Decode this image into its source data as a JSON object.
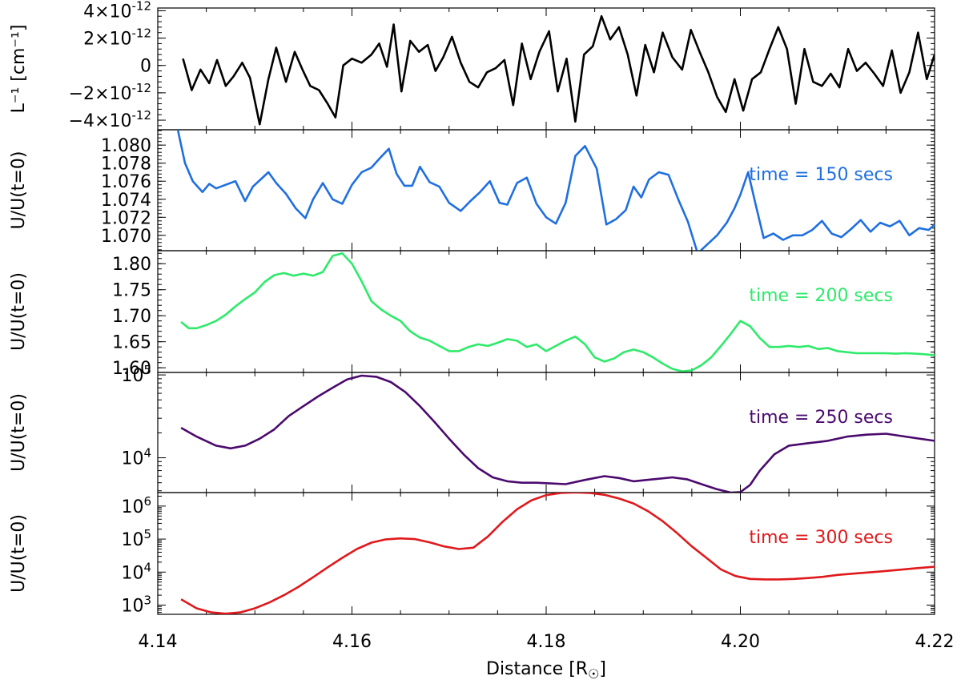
{
  "chart_data": {
    "type": "line",
    "x_axis": {
      "label": "Distance [R",
      "label_symbol": "☉",
      "label_close": "]",
      "range": [
        4.14,
        4.22
      ],
      "ticks": [
        4.14,
        4.16,
        4.18,
        4.2,
        4.22
      ],
      "tick_labels": [
        "4.14",
        "4.16",
        "4.18",
        "4.20",
        "4.22"
      ]
    },
    "panels": [
      {
        "id": "inverse-length",
        "ylabel": "L⁻¹ [cm⁻¹]",
        "scale": "linear",
        "ylim": [
          -4.7e-12,
          4.2e-12
        ],
        "yticks": [
          {
            "value": 4e-12,
            "mant": "4",
            "exp": "-12"
          },
          {
            "value": 2e-12,
            "mant": "2",
            "exp": "-12"
          },
          {
            "value": 0,
            "mant": "0",
            "exp": ""
          },
          {
            "value": -2e-12,
            "mant": "−2",
            "exp": "-12"
          },
          {
            "value": -4e-12,
            "mant": "−4",
            "exp": "-12"
          }
        ],
        "color": "#000000",
        "annotation": "",
        "series": [
          {
            "name": "L^-1",
            "x": [
              4.1426,
              4.1435,
              4.1444,
              4.1453,
              4.1461,
              4.147,
              4.1478,
              4.1487,
              4.1495,
              4.1505,
              4.1514,
              4.1522,
              4.1532,
              4.1541,
              4.1549,
              4.1557,
              4.1566,
              4.1575,
              4.1583,
              4.1591,
              4.16,
              4.161,
              4.162,
              4.1628,
              4.1636,
              4.1643,
              4.1651,
              4.166,
              4.1669,
              4.1678,
              4.1686,
              4.1694,
              4.1703,
              4.1712,
              4.1721,
              4.173,
              4.1739,
              4.1748,
              4.1757,
              4.1766,
              4.1775,
              4.1784,
              4.1793,
              4.1803,
              4.1812,
              4.1821,
              4.183,
              4.1839,
              4.1848,
              4.1857,
              4.1866,
              4.1875,
              4.1884,
              4.1893,
              4.1902,
              4.1911,
              4.192,
              4.193,
              4.194,
              4.1949,
              4.1958,
              4.1967,
              4.1976,
              4.1985,
              4.1994,
              4.2003,
              4.2012,
              4.2021,
              4.203,
              4.2039,
              4.2048,
              4.2057,
              4.2066,
              4.2075,
              4.2084,
              4.2093,
              4.2102,
              4.2111,
              4.212,
              4.2129,
              4.2138,
              4.2147,
              4.2156,
              4.2165,
              4.2174,
              4.2183,
              4.2192,
              4.22
            ],
            "y": [
              5e-13,
              -1.8e-12,
              -3e-13,
              -1.3e-12,
              4e-13,
              -1.5e-12,
              -8e-13,
              2e-13,
              -9e-13,
              -4.3e-12,
              -1e-12,
              1.3e-12,
              -1.2e-12,
              1e-12,
              -3e-13,
              -1.5e-12,
              -1.8e-12,
              -2.8e-12,
              -3.8e-12,
              0.0,
              5e-13,
              2e-13,
              8e-13,
              1.6e-12,
              -1e-13,
              3e-12,
              -1.9e-12,
              1.8e-12,
              1e-12,
              1.5e-12,
              -4e-13,
              6e-13,
              2.1e-12,
              2e-13,
              -1.2e-12,
              -1.6e-12,
              -5e-13,
              -2e-13,
              4e-13,
              -2.9e-12,
              1.6e-12,
              -1e-12,
              1e-12,
              2.5e-12,
              -1.9e-12,
              5e-13,
              -4.1e-12,
              8e-13,
              1.4e-12,
              3.6e-12,
              1.9e-12,
              2.8e-12,
              8e-13,
              -2.2e-12,
              1.5e-12,
              -5e-13,
              2.4e-12,
              6e-13,
              -3e-13,
              2.6e-12,
              1e-12,
              -5e-13,
              -2.3e-12,
              -3.4e-12,
              -1e-12,
              -3.3e-12,
              -1e-12,
              -5e-13,
              1.2e-12,
              2.8e-12,
              1.2e-12,
              -2.8e-12,
              1.2e-12,
              -1.2e-12,
              -1.5e-12,
              -6e-13,
              -1.6e-12,
              1.2e-12,
              -4e-13,
              2e-13,
              -6e-13,
              -1.5e-12,
              1.1e-12,
              -2e-12,
              -5e-13,
              2.4e-12,
              -1e-12,
              8e-13
            ]
          }
        ]
      },
      {
        "id": "energy-150",
        "ylabel": "U/U(t=0)",
        "scale": "linear",
        "ylim": [
          1.0683,
          1.0817
        ],
        "yticks": [
          {
            "value": 1.08,
            "label": "1.080"
          },
          {
            "value": 1.078,
            "label": "1.078"
          },
          {
            "value": 1.076,
            "label": "1.076"
          },
          {
            "value": 1.074,
            "label": "1.074"
          },
          {
            "value": 1.072,
            "label": "1.072"
          },
          {
            "value": 1.07,
            "label": "1.070"
          }
        ],
        "color": "#1f6fe0",
        "annotation": "time =  150 secs",
        "series": [
          {
            "name": "time = 150 secs",
            "x": [
              4.142,
              4.1428,
              4.1436,
              4.1446,
              4.1453,
              4.146,
              4.147,
              4.148,
              4.149,
              4.1498,
              4.1506,
              4.1514,
              4.1522,
              4.1532,
              4.1542,
              4.1552,
              4.156,
              4.157,
              4.158,
              4.159,
              4.16,
              4.161,
              4.162,
              4.163,
              4.1638,
              4.1646,
              4.1654,
              4.1662,
              4.167,
              4.168,
              4.169,
              4.17,
              4.1712,
              4.1722,
              4.1732,
              4.1742,
              4.1752,
              4.176,
              4.177,
              4.178,
              4.179,
              4.18,
              4.181,
              4.182,
              4.183,
              4.184,
              4.1852,
              4.1862,
              4.1872,
              4.1882,
              4.189,
              4.1898,
              4.1906,
              4.1916,
              4.1926,
              4.1936,
              4.1946,
              4.1956,
              4.1966,
              4.1976,
              4.1986,
              4.1994,
              4.2,
              4.2008,
              4.2016,
              4.2024,
              4.2034,
              4.2044,
              4.2054,
              4.2064,
              4.2074,
              4.2084,
              4.2094,
              4.2104,
              4.2114,
              4.2124,
              4.2134,
              4.2144,
              4.2154,
              4.2164,
              4.2174,
              4.2184,
              4.2194,
              4.22
            ],
            "y": [
              1.082,
              1.078,
              1.076,
              1.0748,
              1.0757,
              1.0752,
              1.0756,
              1.076,
              1.0738,
              1.0754,
              1.0762,
              1.077,
              1.0758,
              1.0746,
              1.073,
              1.0719,
              1.074,
              1.0758,
              1.074,
              1.0735,
              1.0756,
              1.077,
              1.0775,
              1.0787,
              1.0796,
              1.0768,
              1.0755,
              1.0755,
              1.0776,
              1.0759,
              1.0754,
              1.0736,
              1.0727,
              1.0738,
              1.0748,
              1.076,
              1.0736,
              1.0734,
              1.0758,
              1.0764,
              1.0735,
              1.072,
              1.0713,
              1.0736,
              1.0788,
              1.0799,
              1.0774,
              1.0712,
              1.0718,
              1.0728,
              1.0754,
              1.0742,
              1.0762,
              1.077,
              1.0767,
              1.074,
              1.0715,
              1.068,
              1.069,
              1.07,
              1.0714,
              1.073,
              1.0745,
              1.077,
              1.0733,
              1.0697,
              1.0702,
              1.0695,
              1.07,
              1.07,
              1.0706,
              1.0716,
              1.0702,
              1.0698,
              1.0707,
              1.0717,
              1.0704,
              1.0714,
              1.071,
              1.0716,
              1.07,
              1.0708,
              1.0706,
              1.0712
            ]
          }
        ]
      },
      {
        "id": "energy-200",
        "ylabel": "U/U(t=0)",
        "scale": "linear",
        "ylim": [
          1.591,
          1.825
        ],
        "yticks": [
          {
            "value": 1.8,
            "label": "1.80"
          },
          {
            "value": 1.75,
            "label": "1.75"
          },
          {
            "value": 1.7,
            "label": "1.70"
          },
          {
            "value": 1.65,
            "label": "1.65"
          },
          {
            "value": 1.6,
            "label": "1.60"
          }
        ],
        "color": "#2eea6a",
        "annotation": "time =  200 secs",
        "series": [
          {
            "name": "time = 200 secs",
            "x": [
              4.1424,
              4.1432,
              4.144,
              4.145,
              4.146,
              4.147,
              4.148,
              4.149,
              4.15,
              4.151,
              4.152,
              4.153,
              4.154,
              4.155,
              4.156,
              4.157,
              4.158,
              4.159,
              4.16,
              4.161,
              4.162,
              4.163,
              4.164,
              4.165,
              4.166,
              4.167,
              4.168,
              4.169,
              4.17,
              4.171,
              4.172,
              4.173,
              4.174,
              4.175,
              4.176,
              4.177,
              4.178,
              4.179,
              4.18,
              4.181,
              4.182,
              4.183,
              4.184,
              4.185,
              4.186,
              4.187,
              4.188,
              4.189,
              4.19,
              4.191,
              4.192,
              4.193,
              4.194,
              4.195,
              4.196,
              4.197,
              4.198,
              4.199,
              4.2,
              4.201,
              4.202,
              4.203,
              4.204,
              4.205,
              4.206,
              4.207,
              4.208,
              4.209,
              4.21,
              4.211,
              4.212,
              4.213,
              4.214,
              4.215,
              4.216,
              4.217,
              4.218,
              4.219,
              4.22
            ],
            "y": [
              1.688,
              1.676,
              1.676,
              1.682,
              1.69,
              1.702,
              1.718,
              1.732,
              1.745,
              1.765,
              1.778,
              1.782,
              1.777,
              1.781,
              1.777,
              1.784,
              1.815,
              1.82,
              1.8,
              1.766,
              1.728,
              1.712,
              1.7,
              1.69,
              1.67,
              1.658,
              1.652,
              1.642,
              1.632,
              1.632,
              1.64,
              1.645,
              1.642,
              1.648,
              1.655,
              1.652,
              1.64,
              1.645,
              1.632,
              1.642,
              1.652,
              1.66,
              1.645,
              1.62,
              1.612,
              1.618,
              1.63,
              1.635,
              1.63,
              1.62,
              1.608,
              1.598,
              1.593,
              1.595,
              1.605,
              1.62,
              1.642,
              1.665,
              1.69,
              1.68,
              1.657,
              1.64,
              1.64,
              1.642,
              1.64,
              1.642,
              1.636,
              1.638,
              1.632,
              1.63,
              1.628,
              1.628,
              1.628,
              1.628,
              1.627,
              1.628,
              1.627,
              1.626,
              1.624
            ]
          }
        ]
      },
      {
        "id": "energy-250",
        "ylabel": "U/U(t=0)",
        "scale": "log",
        "ylim_log10": [
          3.58,
          5.03
        ],
        "yticks": [
          {
            "value": 100000,
            "mant": "10",
            "exp": "5"
          },
          {
            "value": 10000,
            "mant": "10",
            "exp": "4"
          }
        ],
        "color": "#4b0a6e",
        "annotation": "time =  250 secs",
        "series": [
          {
            "name": "time = 250 secs",
            "x": [
              4.1424,
              4.144,
              4.146,
              4.1475,
              4.149,
              4.1505,
              4.152,
              4.1535,
              4.155,
              4.1565,
              4.158,
              4.1595,
              4.161,
              4.1625,
              4.164,
              4.1655,
              4.167,
              4.1685,
              4.17,
              4.1715,
              4.173,
              4.1745,
              4.176,
              4.1775,
              4.179,
              4.1805,
              4.182,
              4.184,
              4.186,
              4.1875,
              4.189,
              4.191,
              4.193,
              4.1945,
              4.196,
              4.1975,
              4.199,
              4.2,
              4.201,
              4.202,
              4.2035,
              4.205,
              4.207,
              4.209,
              4.211,
              4.213,
              4.215,
              4.217,
              4.22
            ],
            "y": [
              23000,
              18000,
              14000,
              13000,
              14000,
              17000,
              22000,
              32000,
              42000,
              55000,
              70000,
              88000,
              98000,
              95000,
              82000,
              62000,
              42000,
              27000,
              17000,
              11000,
              7500,
              5800,
              5200,
              5000,
              5000,
              4900,
              4800,
              5400,
              6000,
              5700,
              5200,
              5500,
              5800,
              5500,
              4800,
              4200,
              3800,
              3850,
              4700,
              7000,
              11000,
              14000,
              15000,
              16000,
              18000,
              19000,
              19500,
              18000,
              16000
            ]
          }
        ]
      },
      {
        "id": "energy-300",
        "ylabel": "U/U(t=0)",
        "scale": "log",
        "ylim_log10": [
          2.72,
          6.41
        ],
        "yticks": [
          {
            "value": 1000000,
            "mant": "10",
            "exp": "6"
          },
          {
            "value": 100000,
            "mant": "10",
            "exp": "5"
          },
          {
            "value": 10000,
            "mant": "10",
            "exp": "4"
          },
          {
            "value": 1000,
            "mant": "10",
            "exp": "3"
          }
        ],
        "color": "#e0191c",
        "annotation": "time =  300 secs",
        "series": [
          {
            "name": "time = 300 secs",
            "x": [
              4.1424,
              4.144,
              4.1455,
              4.147,
              4.1485,
              4.15,
              4.1515,
              4.153,
              4.1545,
              4.156,
              4.1575,
              4.159,
              4.1605,
              4.162,
              4.1635,
              4.165,
              4.1665,
              4.168,
              4.1695,
              4.171,
              4.1725,
              4.174,
              4.1755,
              4.177,
              4.1785,
              4.18,
              4.1815,
              4.183,
              4.1845,
              4.186,
              4.1875,
              4.189,
              4.1905,
              4.192,
              4.1935,
              4.195,
              4.1965,
              4.198,
              4.1995,
              4.201,
              4.2025,
              4.204,
              4.2055,
              4.207,
              4.2085,
              4.21,
              4.212,
              4.214,
              4.216,
              4.218,
              4.22
            ],
            "y": [
              1500,
              800,
              600,
              550,
              600,
              800,
              1200,
              2000,
              3600,
              7000,
              14000,
              27000,
              50000,
              78000,
              98000,
              105000,
              100000,
              80000,
              60000,
              50000,
              55000,
              120000,
              330000,
              800000,
              1500000,
              2150000,
              2500000,
              2600000,
              2500000,
              2200000,
              1700000,
              1200000,
              700000,
              350000,
              150000,
              60000,
              27000,
              12000,
              7600,
              6200,
              6000,
              6000,
              6200,
              6600,
              7200,
              8200,
              9200,
              10200,
              11500,
              13000,
              14500
            ]
          }
        ]
      }
    ]
  }
}
